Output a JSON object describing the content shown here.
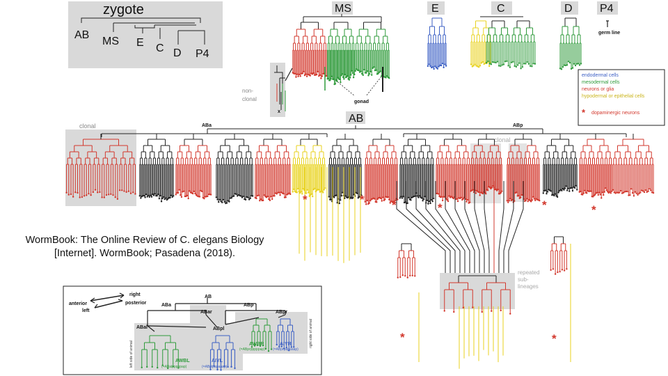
{
  "lineage_overview": {
    "root": "zygote",
    "cells": [
      "AB",
      "MS",
      "E",
      "C",
      "D",
      "P4"
    ]
  },
  "sublineage_headers": {
    "ms": "MS",
    "e": "E",
    "c": "C",
    "d": "D",
    "p4": "P4"
  },
  "p4_note": "germ line",
  "ms_annotations": {
    "non_clonal": [
      "non-",
      "clonal"
    ],
    "gonad": "gonad",
    "x_mark": "x"
  },
  "legend": {
    "items": [
      {
        "label": "endodermal cells",
        "color": "#3b5fc4"
      },
      {
        "label": "mesodermal cells",
        "color": "#2e9a3a"
      },
      {
        "label": "neurons or glia",
        "color": "#d2372c"
      },
      {
        "label": "hypodermal or epithelial cells",
        "color": "#e8d21e"
      }
    ],
    "marker_label": "dopaminergic neurons",
    "marker_symbol": "*"
  },
  "ab_tree": {
    "header": "AB",
    "left_branch": "ABa",
    "right_branch": "ABp",
    "clonal_labels": [
      "clonal",
      "clonal"
    ],
    "repeated_label": [
      "repeated",
      "sub-",
      "lineages"
    ]
  },
  "citation": {
    "line1": "WormBook: The Online Review of C. elegans Biology",
    "line2": "[Internet]. WormBook; Pasadena (2018)."
  },
  "inset": {
    "axes": {
      "anterior": "anterior",
      "posterior": "posterior",
      "right": "right",
      "left": "left"
    },
    "nodes": {
      "ab": "AB",
      "aba": "ABa",
      "abp": "ABp",
      "abar": "ABar",
      "abpr": "ABpr",
      "abal": "ABal",
      "abpl": "ABpl"
    },
    "cells": {
      "awbl": "AWBL",
      "awbl_id": "(=ABalpppppap)",
      "aiyl": "AIYL",
      "aiyl_id": "(=ABplpapaaap)",
      "awbr": "AWBR",
      "awbr_id": "(=ABprpppppap)",
      "aiyr": "AIYR",
      "aiyr_id": "(=ABprpapaaap)"
    },
    "side_labels": {
      "left": "left side of animal",
      "right": "right side of animal"
    }
  },
  "colors": {
    "endoderm": "#3b5fc4",
    "mesoderm": "#2e9a3a",
    "neuron": "#d2372c",
    "hypoderm": "#e8d21e",
    "line": "#222222",
    "panel": "#d9d9d9"
  }
}
